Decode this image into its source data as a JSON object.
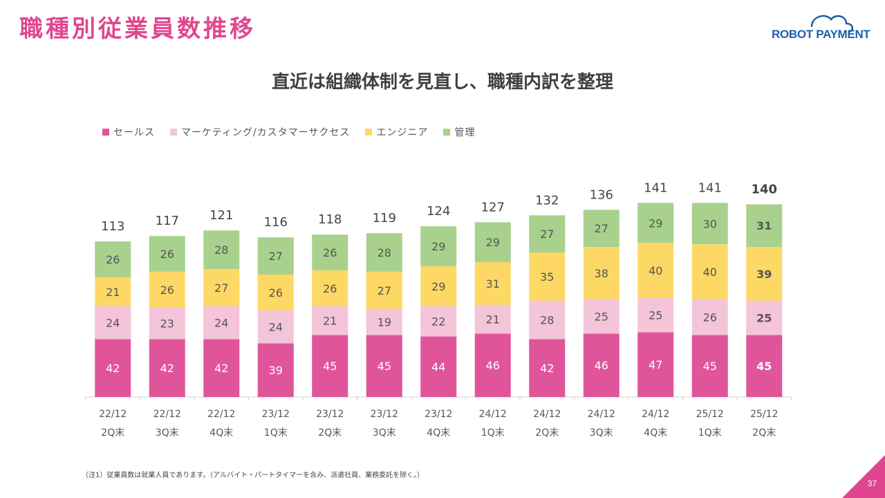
{
  "header": {
    "title": "職種別従業員数推移",
    "logo_text": "ROBOT PAYMENT"
  },
  "subtitle": "直近は組織体制を見直し、職種内訳を整理",
  "colors": {
    "accent": "#e0468e",
    "sales": "#e0559a",
    "marketing": "#f4c4d9",
    "engineer": "#fdd865",
    "admin": "#a8d18d",
    "logo_blue": "#1f5fa8"
  },
  "legend": [
    {
      "label": "セールス",
      "color": "#e0559a"
    },
    {
      "label": "マーケティング/カスタマーサクセス",
      "color": "#f4c4d9"
    },
    {
      "label": "エンジニア",
      "color": "#fdd865"
    },
    {
      "label": "管理",
      "color": "#a8d18d"
    }
  ],
  "chart_data": {
    "type": "bar",
    "stacked": true,
    "categories": [
      [
        "22/12",
        "2Q末"
      ],
      [
        "22/12",
        "3Q末"
      ],
      [
        "22/12",
        "4Q末"
      ],
      [
        "23/12",
        "1Q末"
      ],
      [
        "23/12",
        "2Q末"
      ],
      [
        "23/12",
        "3Q末"
      ],
      [
        "23/12",
        "4Q末"
      ],
      [
        "24/12",
        "1Q末"
      ],
      [
        "24/12",
        "2Q末"
      ],
      [
        "24/12",
        "3Q末"
      ],
      [
        "24/12",
        "4Q末"
      ],
      [
        "25/12",
        "1Q末"
      ],
      [
        "25/12",
        "2Q末"
      ]
    ],
    "series": [
      {
        "name": "セールス",
        "color": "#e0559a",
        "values": [
          42,
          42,
          42,
          39,
          45,
          45,
          44,
          46,
          42,
          46,
          47,
          45,
          45
        ]
      },
      {
        "name": "マーケティング/カスタマーサクセス",
        "color": "#f4c4d9",
        "values": [
          24,
          23,
          24,
          24,
          21,
          19,
          22,
          21,
          28,
          25,
          25,
          26,
          25
        ]
      },
      {
        "name": "エンジニア",
        "color": "#fdd865",
        "values": [
          21,
          26,
          27,
          26,
          26,
          27,
          29,
          31,
          35,
          38,
          40,
          40,
          39
        ]
      },
      {
        "name": "管理",
        "color": "#a8d18d",
        "values": [
          26,
          26,
          28,
          27,
          26,
          28,
          29,
          29,
          27,
          27,
          29,
          30,
          31
        ]
      }
    ],
    "totals": [
      113,
      117,
      121,
      116,
      118,
      119,
      124,
      127,
      132,
      136,
      141,
      141,
      140
    ],
    "highlight_last": true,
    "legend_position": "top-left",
    "grid": false
  },
  "footnote": "（注1）従業員数は就業人員であります。（アルバイト・パートタイマーを含み、派遣社員、業務委託を除く。）",
  "page_number": "37"
}
